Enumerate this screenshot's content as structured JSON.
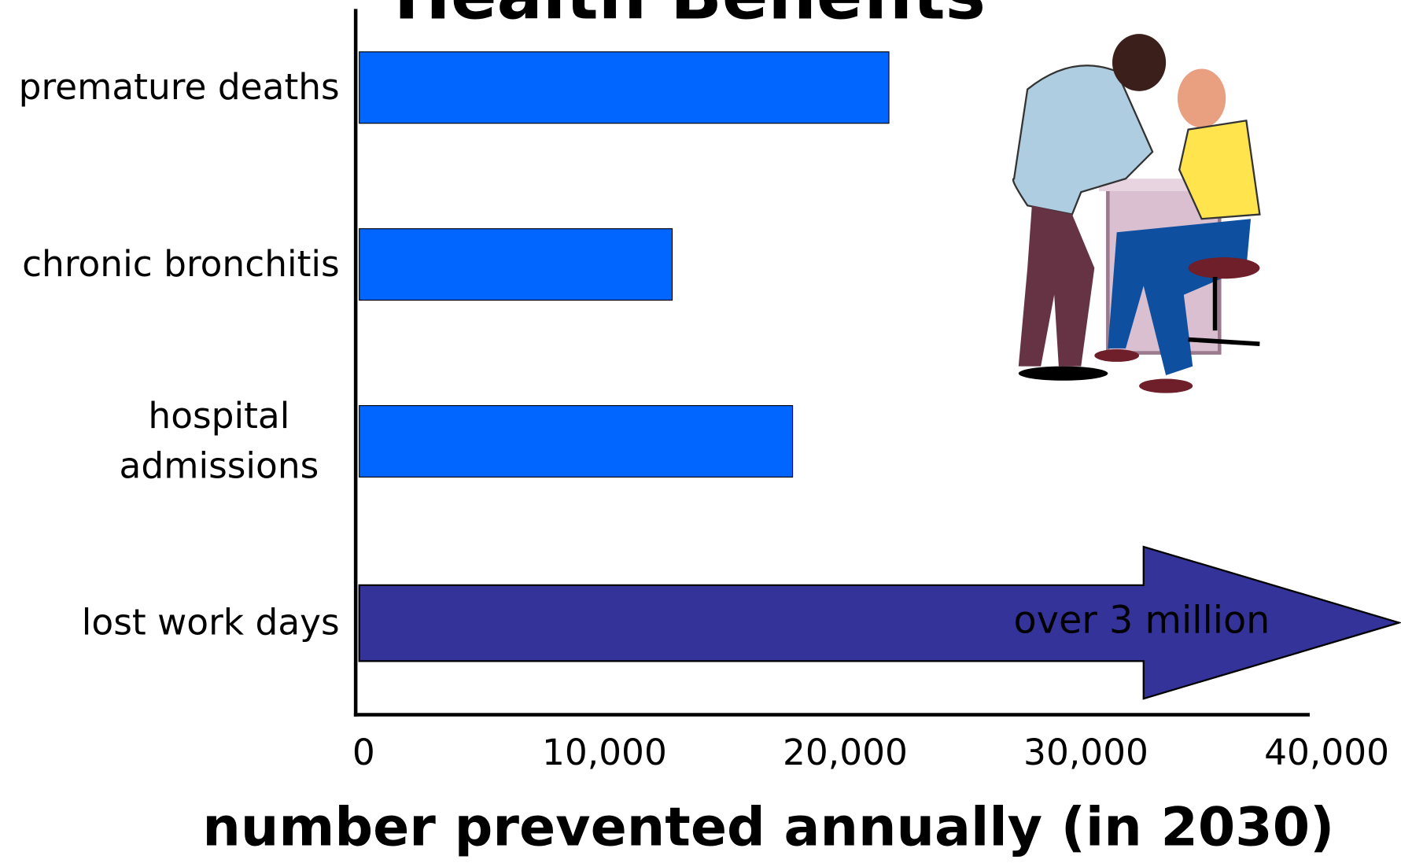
{
  "chart_data": {
    "type": "bar",
    "orientation": "horizontal",
    "title": "Health Benefits",
    "x_label": "number prevented annually (in 2030)",
    "categories": [
      "premature deaths",
      "chronic bronchitis",
      "hospital admissions",
      "lost work days"
    ],
    "values": [
      22000,
      13000,
      18000,
      null
    ],
    "color": "#0066ff",
    "annotation": "over 3 million",
    "annotation_color": "#333399",
    "xlim": [
      0,
      40000
    ],
    "xticks": [
      0,
      {
        "value": 10000,
        "label": "10,000"
      },
      {
        "value": 20000,
        "label": "20,000"
      },
      {
        "value": 30000,
        "label": "30,000"
      },
      {
        "value": 40000,
        "label": "40,000"
      }
    ],
    "grid": false
  }
}
